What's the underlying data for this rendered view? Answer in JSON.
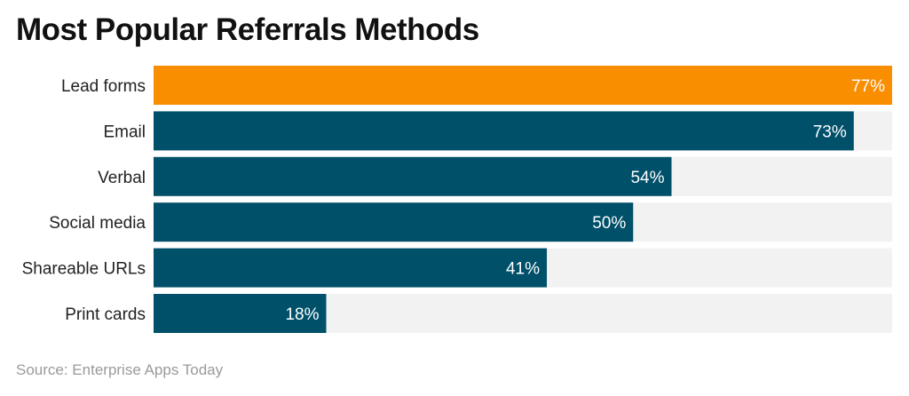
{
  "chart_data": {
    "type": "bar",
    "orientation": "horizontal",
    "title": "Most Popular Referrals Methods",
    "categories": [
      "Lead forms",
      "Email",
      "Verbal",
      "Social media",
      "Shareable URLs",
      "Print cards"
    ],
    "values": [
      77,
      73,
      54,
      50,
      41,
      18
    ],
    "value_suffix": "%",
    "highlight_index": 0,
    "xlim": [
      0,
      77
    ],
    "grid": false,
    "colors": {
      "highlight": "#F98E00",
      "bar": "#00506A",
      "track": "#F2F2F2",
      "value_label": "#FFFFFF"
    },
    "source": "Source: Enterprise Apps Today"
  }
}
